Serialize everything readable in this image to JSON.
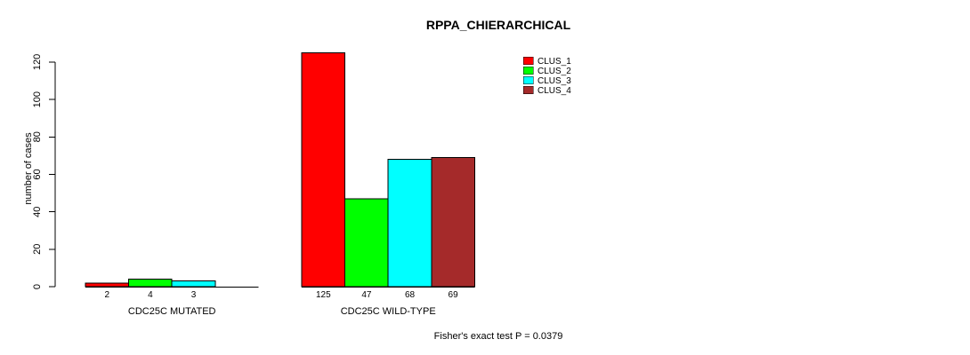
{
  "title": "RPPA_CHIERARCHICAL",
  "footer_note": "Fisher's exact test P = 0.0379",
  "chart_data": {
    "type": "bar",
    "title": "RPPA_CHIERARCHICAL",
    "xlabel": "",
    "ylabel": "number of cases",
    "ylim": [
      0,
      120
    ],
    "yticks": [
      0,
      20,
      40,
      60,
      80,
      100,
      120
    ],
    "grid": false,
    "legend_position": "top-right",
    "categories": [
      "CDC25C MUTATED",
      "CDC25C WILD-TYPE"
    ],
    "series": [
      {
        "name": "CLUS_1",
        "color": "#ff0000",
        "values": [
          2,
          125
        ]
      },
      {
        "name": "CLUS_2",
        "color": "#00ff00",
        "values": [
          4,
          47
        ]
      },
      {
        "name": "CLUS_3",
        "color": "#00ffff",
        "values": [
          3,
          68
        ]
      },
      {
        "name": "CLUS_4",
        "color": "#a52a2a",
        "values": [
          0,
          69
        ]
      }
    ],
    "bar_labels": [
      [
        "2",
        "4",
        "3",
        ""
      ],
      [
        "125",
        "47",
        "68",
        "69"
      ]
    ],
    "annotation": "Fisher's exact test P = 0.0379"
  }
}
